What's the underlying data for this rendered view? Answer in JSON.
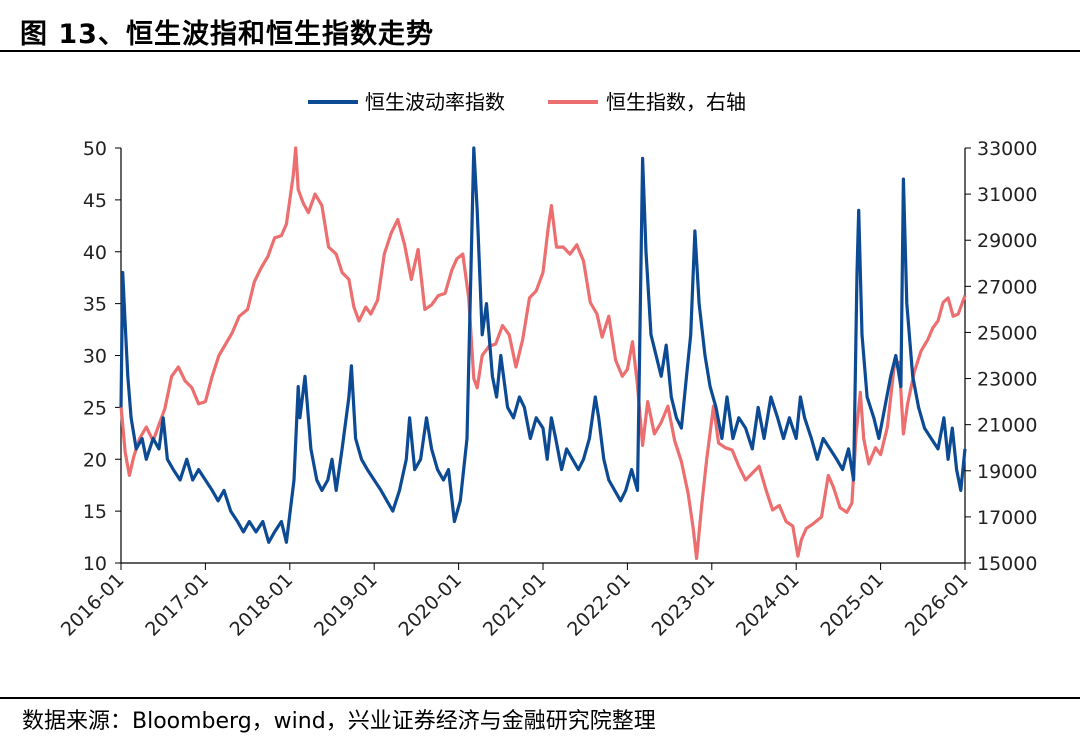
{
  "title": "图 13、恒生波指和恒生指数走势",
  "source": "数据来源：Bloomberg，wind，兴业证券经济与金融研究院整理",
  "chart_data": {
    "type": "line",
    "x_ticks": [
      "2016-01",
      "2017-01",
      "2018-01",
      "2019-01",
      "2020-01",
      "2021-01",
      "2022-01",
      "2023-01",
      "2024-01",
      "2025-01",
      "2026-01"
    ],
    "y_left": {
      "range": [
        10,
        50
      ],
      "ticks": [
        10,
        15,
        20,
        25,
        30,
        35,
        40,
        45,
        50
      ]
    },
    "y_right": {
      "range": [
        15000,
        33000
      ],
      "ticks": [
        15000,
        17000,
        19000,
        21000,
        23000,
        25000,
        27000,
        29000,
        31000,
        33000
      ]
    },
    "series": [
      {
        "name": "恒生波动率指数",
        "axis": "left",
        "color": "#0d4a94",
        "points": [
          [
            2016.0,
            25
          ],
          [
            2016.02,
            38
          ],
          [
            2016.05,
            33
          ],
          [
            2016.08,
            28
          ],
          [
            2016.12,
            24
          ],
          [
            2016.18,
            21
          ],
          [
            2016.25,
            22
          ],
          [
            2016.3,
            20
          ],
          [
            2016.38,
            22
          ],
          [
            2016.45,
            21
          ],
          [
            2016.5,
            24
          ],
          [
            2016.55,
            20
          ],
          [
            2016.62,
            19
          ],
          [
            2016.7,
            18
          ],
          [
            2016.78,
            20
          ],
          [
            2016.85,
            18
          ],
          [
            2016.92,
            19
          ],
          [
            2017.0,
            18
          ],
          [
            2017.08,
            17
          ],
          [
            2017.15,
            16
          ],
          [
            2017.22,
            17
          ],
          [
            2017.3,
            15
          ],
          [
            2017.38,
            14
          ],
          [
            2017.45,
            13
          ],
          [
            2017.52,
            14
          ],
          [
            2017.6,
            13
          ],
          [
            2017.68,
            14
          ],
          [
            2017.75,
            12
          ],
          [
            2017.82,
            13
          ],
          [
            2017.9,
            14
          ],
          [
            2017.96,
            12
          ],
          [
            2018.05,
            18
          ],
          [
            2018.1,
            27
          ],
          [
            2018.12,
            24
          ],
          [
            2018.18,
            28
          ],
          [
            2018.25,
            21
          ],
          [
            2018.32,
            18
          ],
          [
            2018.38,
            17
          ],
          [
            2018.45,
            18
          ],
          [
            2018.5,
            20
          ],
          [
            2018.55,
            17
          ],
          [
            2018.62,
            21
          ],
          [
            2018.7,
            26
          ],
          [
            2018.73,
            29
          ],
          [
            2018.78,
            22
          ],
          [
            2018.85,
            20
          ],
          [
            2018.92,
            19
          ],
          [
            2019.0,
            18
          ],
          [
            2019.08,
            17
          ],
          [
            2019.15,
            16
          ],
          [
            2019.22,
            15
          ],
          [
            2019.3,
            17
          ],
          [
            2019.38,
            20
          ],
          [
            2019.42,
            24
          ],
          [
            2019.48,
            19
          ],
          [
            2019.55,
            20
          ],
          [
            2019.62,
            24
          ],
          [
            2019.68,
            21
          ],
          [
            2019.75,
            19
          ],
          [
            2019.82,
            18
          ],
          [
            2019.88,
            19
          ],
          [
            2019.95,
            14
          ],
          [
            2020.02,
            16
          ],
          [
            2020.1,
            22
          ],
          [
            2020.18,
            50
          ],
          [
            2020.22,
            44
          ],
          [
            2020.28,
            32
          ],
          [
            2020.33,
            35
          ],
          [
            2020.4,
            28
          ],
          [
            2020.45,
            26
          ],
          [
            2020.5,
            30
          ],
          [
            2020.58,
            25
          ],
          [
            2020.65,
            24
          ],
          [
            2020.72,
            26
          ],
          [
            2020.78,
            25
          ],
          [
            2020.85,
            22
          ],
          [
            2020.92,
            24
          ],
          [
            2021.0,
            23
          ],
          [
            2021.05,
            20
          ],
          [
            2021.1,
            24
          ],
          [
            2021.15,
            22
          ],
          [
            2021.22,
            19
          ],
          [
            2021.28,
            21
          ],
          [
            2021.35,
            20
          ],
          [
            2021.42,
            19
          ],
          [
            2021.48,
            20
          ],
          [
            2021.55,
            22
          ],
          [
            2021.62,
            26
          ],
          [
            2021.66,
            24
          ],
          [
            2021.72,
            20
          ],
          [
            2021.78,
            18
          ],
          [
            2021.85,
            17
          ],
          [
            2021.92,
            16
          ],
          [
            2021.98,
            17
          ],
          [
            2022.05,
            19
          ],
          [
            2022.12,
            17
          ],
          [
            2022.18,
            49
          ],
          [
            2022.22,
            40
          ],
          [
            2022.28,
            32
          ],
          [
            2022.34,
            30
          ],
          [
            2022.4,
            28
          ],
          [
            2022.46,
            31
          ],
          [
            2022.52,
            26
          ],
          [
            2022.58,
            24
          ],
          [
            2022.64,
            23
          ],
          [
            2022.7,
            28
          ],
          [
            2022.75,
            32
          ],
          [
            2022.8,
            42
          ],
          [
            2022.85,
            35
          ],
          [
            2022.92,
            30
          ],
          [
            2022.98,
            27
          ],
          [
            2023.05,
            25
          ],
          [
            2023.12,
            22
          ],
          [
            2023.18,
            26
          ],
          [
            2023.25,
            22
          ],
          [
            2023.32,
            24
          ],
          [
            2023.4,
            23
          ],
          [
            2023.48,
            21
          ],
          [
            2023.55,
            25
          ],
          [
            2023.62,
            22
          ],
          [
            2023.7,
            26
          ],
          [
            2023.78,
            24
          ],
          [
            2023.85,
            22
          ],
          [
            2023.92,
            24
          ],
          [
            2024.0,
            22
          ],
          [
            2024.05,
            26
          ],
          [
            2024.1,
            24
          ],
          [
            2024.18,
            22
          ],
          [
            2024.25,
            20
          ],
          [
            2024.32,
            22
          ],
          [
            2024.4,
            21
          ],
          [
            2024.48,
            20
          ],
          [
            2024.55,
            19
          ],
          [
            2024.62,
            21
          ],
          [
            2024.68,
            18
          ],
          [
            2024.72,
            38
          ],
          [
            2024.74,
            44
          ],
          [
            2024.78,
            32
          ],
          [
            2024.84,
            26
          ],
          [
            2024.92,
            24
          ],
          [
            2024.98,
            22
          ],
          [
            2025.05,
            25
          ],
          [
            2025.12,
            28
          ],
          [
            2025.18,
            30
          ],
          [
            2025.24,
            27
          ],
          [
            2025.27,
            47
          ],
          [
            2025.31,
            35
          ],
          [
            2025.38,
            28
          ],
          [
            2025.45,
            25
          ],
          [
            2025.52,
            23
          ],
          [
            2025.6,
            22
          ],
          [
            2025.68,
            21
          ],
          [
            2025.75,
            24
          ],
          [
            2025.8,
            20
          ],
          [
            2025.85,
            23
          ],
          [
            2025.9,
            19
          ],
          [
            2025.95,
            17
          ],
          [
            2026.0,
            21
          ]
        ]
      },
      {
        "name": "恒生指数，右轴",
        "axis": "right",
        "color": "#ec6e6e",
        "points": [
          [
            2016.0,
            21800
          ],
          [
            2016.05,
            19800
          ],
          [
            2016.1,
            18800
          ],
          [
            2016.15,
            19600
          ],
          [
            2016.22,
            20400
          ],
          [
            2016.3,
            20900
          ],
          [
            2016.38,
            20300
          ],
          [
            2016.45,
            21000
          ],
          [
            2016.52,
            21700
          ],
          [
            2016.6,
            23100
          ],
          [
            2016.68,
            23500
          ],
          [
            2016.76,
            22900
          ],
          [
            2016.84,
            22600
          ],
          [
            2016.92,
            21900
          ],
          [
            2017.0,
            22000
          ],
          [
            2017.08,
            23100
          ],
          [
            2017.16,
            24000
          ],
          [
            2017.24,
            24500
          ],
          [
            2017.32,
            25000
          ],
          [
            2017.4,
            25700
          ],
          [
            2017.5,
            26000
          ],
          [
            2017.58,
            27200
          ],
          [
            2017.66,
            27800
          ],
          [
            2017.74,
            28300
          ],
          [
            2017.82,
            29100
          ],
          [
            2017.9,
            29200
          ],
          [
            2017.96,
            29700
          ],
          [
            2018.04,
            31800
          ],
          [
            2018.07,
            33000
          ],
          [
            2018.1,
            31200
          ],
          [
            2018.16,
            30600
          ],
          [
            2018.22,
            30200
          ],
          [
            2018.3,
            31000
          ],
          [
            2018.38,
            30500
          ],
          [
            2018.46,
            28700
          ],
          [
            2018.55,
            28400
          ],
          [
            2018.62,
            27600
          ],
          [
            2018.7,
            27300
          ],
          [
            2018.76,
            26100
          ],
          [
            2018.82,
            25500
          ],
          [
            2018.9,
            26100
          ],
          [
            2018.96,
            25800
          ],
          [
            2019.04,
            26400
          ],
          [
            2019.12,
            28400
          ],
          [
            2019.2,
            29300
          ],
          [
            2019.28,
            29900
          ],
          [
            2019.36,
            28800
          ],
          [
            2019.44,
            27300
          ],
          [
            2019.52,
            28600
          ],
          [
            2019.6,
            26000
          ],
          [
            2019.68,
            26200
          ],
          [
            2019.76,
            26600
          ],
          [
            2019.84,
            26700
          ],
          [
            2019.92,
            27700
          ],
          [
            2019.98,
            28200
          ],
          [
            2020.05,
            28400
          ],
          [
            2020.12,
            26500
          ],
          [
            2020.18,
            23000
          ],
          [
            2020.22,
            22600
          ],
          [
            2020.28,
            24000
          ],
          [
            2020.36,
            24400
          ],
          [
            2020.44,
            24500
          ],
          [
            2020.52,
            25300
          ],
          [
            2020.6,
            24900
          ],
          [
            2020.68,
            23500
          ],
          [
            2020.76,
            24700
          ],
          [
            2020.84,
            26500
          ],
          [
            2020.92,
            26800
          ],
          [
            2021.0,
            27600
          ],
          [
            2021.06,
            29500
          ],
          [
            2021.1,
            30500
          ],
          [
            2021.16,
            28700
          ],
          [
            2021.24,
            28700
          ],
          [
            2021.32,
            28400
          ],
          [
            2021.4,
            28800
          ],
          [
            2021.48,
            28100
          ],
          [
            2021.56,
            26300
          ],
          [
            2021.64,
            25800
          ],
          [
            2021.7,
            24800
          ],
          [
            2021.78,
            25700
          ],
          [
            2021.86,
            23800
          ],
          [
            2021.94,
            23100
          ],
          [
            2022.0,
            23400
          ],
          [
            2022.06,
            24600
          ],
          [
            2022.12,
            22700
          ],
          [
            2022.18,
            20100
          ],
          [
            2022.24,
            22000
          ],
          [
            2022.32,
            20600
          ],
          [
            2022.4,
            21100
          ],
          [
            2022.48,
            21800
          ],
          [
            2022.56,
            20300
          ],
          [
            2022.64,
            19400
          ],
          [
            2022.72,
            18000
          ],
          [
            2022.78,
            16500
          ],
          [
            2022.82,
            15200
          ],
          [
            2022.88,
            17500
          ],
          [
            2022.94,
            19500
          ],
          [
            2023.02,
            21800
          ],
          [
            2023.08,
            20200
          ],
          [
            2023.16,
            20000
          ],
          [
            2023.24,
            19900
          ],
          [
            2023.32,
            19200
          ],
          [
            2023.4,
            18600
          ],
          [
            2023.48,
            18900
          ],
          [
            2023.56,
            19200
          ],
          [
            2023.64,
            18200
          ],
          [
            2023.72,
            17300
          ],
          [
            2023.8,
            17500
          ],
          [
            2023.88,
            16800
          ],
          [
            2023.96,
            16600
          ],
          [
            2024.02,
            15300
          ],
          [
            2024.06,
            16000
          ],
          [
            2024.12,
            16500
          ],
          [
            2024.2,
            16700
          ],
          [
            2024.3,
            17000
          ],
          [
            2024.38,
            18800
          ],
          [
            2024.44,
            18300
          ],
          [
            2024.52,
            17400
          ],
          [
            2024.6,
            17200
          ],
          [
            2024.66,
            17600
          ],
          [
            2024.71,
            20600
          ],
          [
            2024.76,
            22400
          ],
          [
            2024.8,
            20400
          ],
          [
            2024.86,
            19300
          ],
          [
            2024.94,
            20000
          ],
          [
            2025.0,
            19700
          ],
          [
            2025.08,
            20900
          ],
          [
            2025.16,
            23500
          ],
          [
            2025.22,
            23700
          ],
          [
            2025.27,
            20600
          ],
          [
            2025.32,
            21900
          ],
          [
            2025.4,
            23300
          ],
          [
            2025.48,
            24200
          ],
          [
            2025.56,
            24700
          ],
          [
            2025.62,
            25200
          ],
          [
            2025.68,
            25500
          ],
          [
            2025.74,
            26300
          ],
          [
            2025.8,
            26500
          ],
          [
            2025.86,
            25700
          ],
          [
            2025.92,
            25800
          ],
          [
            2026.0,
            26600
          ]
        ]
      }
    ]
  }
}
